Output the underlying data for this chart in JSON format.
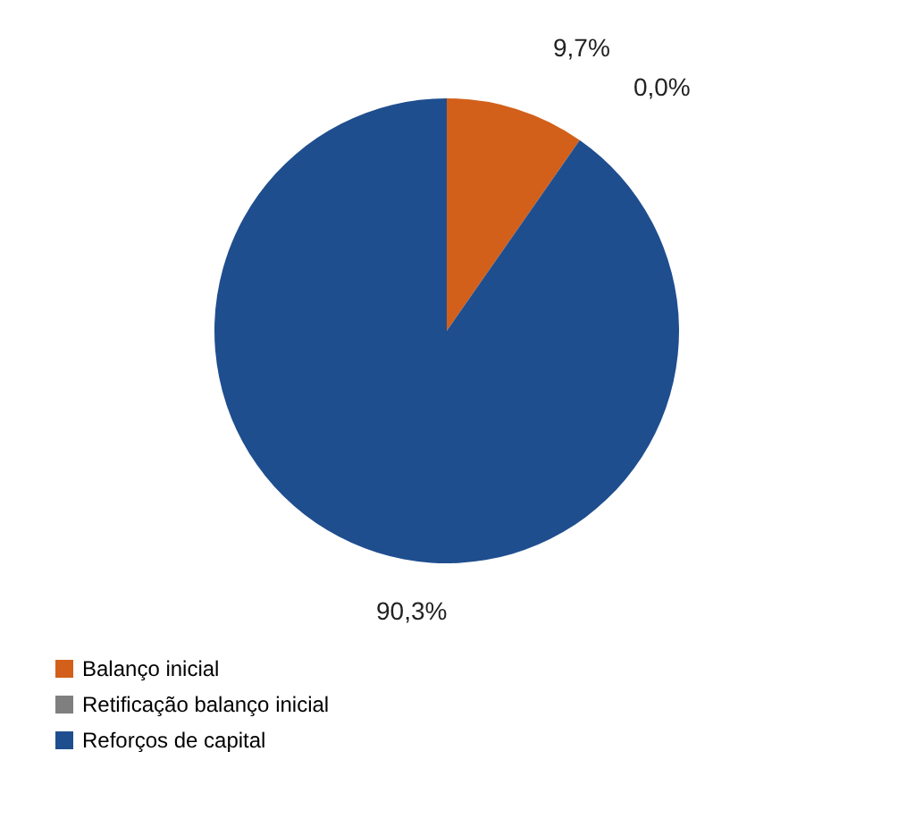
{
  "chart_data": {
    "type": "pie",
    "categories": [
      "Balanço inicial",
      "Retificação balanço inicial",
      "Reforços de capital"
    ],
    "values": [
      9.7,
      0.0,
      90.3
    ],
    "colors": [
      "#d2601a",
      "#7f7f7f",
      "#1f4e8f"
    ],
    "value_labels": [
      "9,7%",
      "0,0%",
      "90,3%"
    ],
    "legend": "bottom"
  }
}
